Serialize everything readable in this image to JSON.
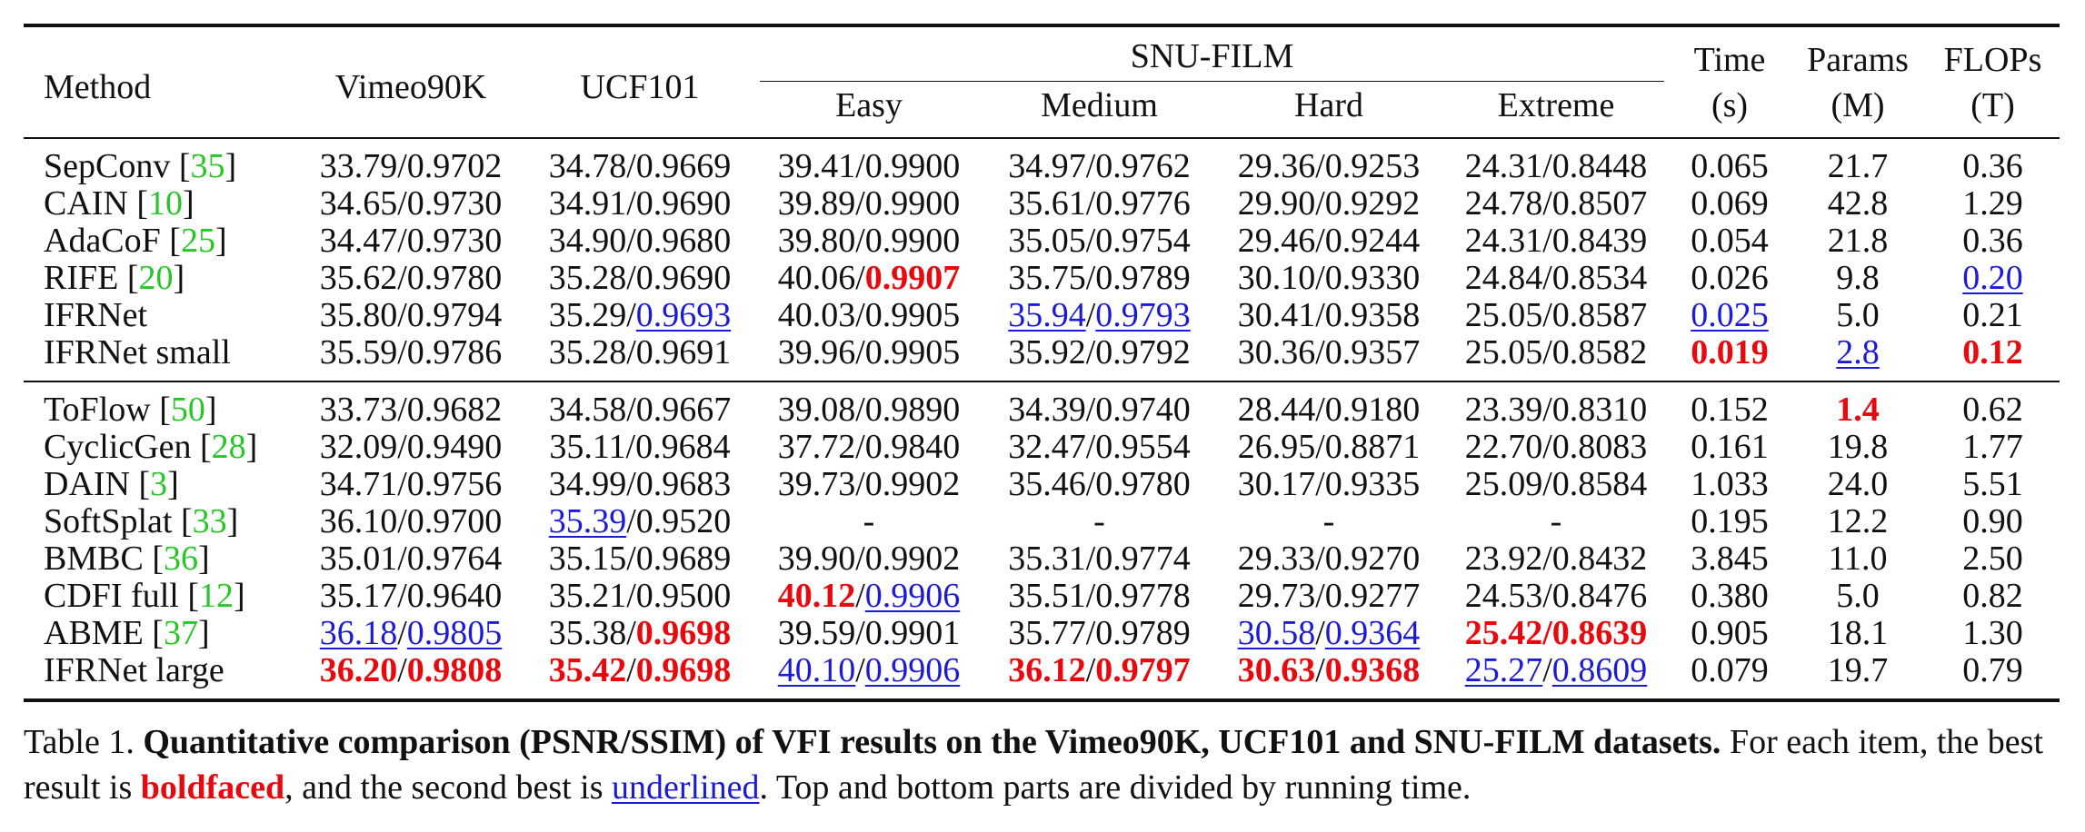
{
  "header": {
    "method": "Method",
    "vimeo": "Vimeo90K",
    "ucf": "UCF101",
    "snu": "SNU-FILM",
    "easy": "Easy",
    "medium": "Medium",
    "hard": "Hard",
    "extreme": "Extreme",
    "time": "Time",
    "time_unit": "(s)",
    "params": "Params",
    "params_unit": "(M)",
    "flops": "FLOPs",
    "flops_unit": "(T)"
  },
  "group1": [
    {
      "method": "SepConv ",
      "ref": "35",
      "cells": [
        "33.79/0.9702",
        "34.78/0.9669",
        "39.41/0.9900",
        "34.97/0.9762",
        "29.36/0.9253",
        "24.31/0.8448",
        "0.065",
        "21.7",
        "0.36"
      ]
    },
    {
      "method": "CAIN ",
      "ref": "10",
      "cells": [
        "34.65/0.9730",
        "34.91/0.9690",
        "39.89/0.9900",
        "35.61/0.9776",
        "29.90/0.9292",
        "24.78/0.8507",
        "0.069",
        "42.8",
        "1.29"
      ]
    },
    {
      "method": "AdaCoF ",
      "ref": "25",
      "cells": [
        "34.47/0.9730",
        "34.90/0.9680",
        "39.80/0.9900",
        "35.05/0.9754",
        "29.46/0.9244",
        "24.31/0.8439",
        "0.054",
        "21.8",
        "0.36"
      ]
    },
    {
      "method": "RIFE ",
      "ref": "20",
      "cells": [
        "35.62/0.9780",
        "35.28/0.9690",
        "40.06/",
        "35.75/0.9789",
        "30.10/0.9330",
        "24.84/0.8534",
        "0.026",
        "9.8",
        ""
      ],
      "rife_best": "0.9907",
      "rife_flops": "0.20"
    },
    {
      "method": "IFRNet",
      "ref": "",
      "cells": [
        "35.80/0.9794",
        "35.29/",
        "40.03/0.9905",
        "",
        "30.41/0.9358",
        "25.05/0.8587",
        "",
        "5.0",
        "0.21"
      ],
      "ucf_second": "0.9693",
      "med_a": "35.94",
      "med_b": "0.9793",
      "time_second": "0.025"
    },
    {
      "method": "IFRNet small",
      "ref": "",
      "cells": [
        "35.59/0.9786",
        "35.28/0.9691",
        "39.96/0.9905",
        "35.92/0.9792",
        "30.36/0.9357",
        "25.05/0.8582",
        "",
        "",
        ""
      ],
      "time_best": "0.019",
      "params_second": "2.8",
      "flops_best": "0.12"
    }
  ],
  "group2": [
    {
      "method": "ToFlow ",
      "ref": "50",
      "cells": [
        "33.73/0.9682",
        "34.58/0.9667",
        "39.08/0.9890",
        "34.39/0.9740",
        "28.44/0.9180",
        "23.39/0.8310",
        "0.152",
        "",
        "0.62"
      ],
      "params_best": "1.4"
    },
    {
      "method": "CyclicGen ",
      "ref": "28",
      "cells": [
        "32.09/0.9490",
        "35.11/0.9684",
        "37.72/0.9840",
        "32.47/0.9554",
        "26.95/0.8871",
        "22.70/0.8083",
        "0.161",
        "19.8",
        "1.77"
      ]
    },
    {
      "method": "DAIN ",
      "ref": "3",
      "cells": [
        "34.71/0.9756",
        "34.99/0.9683",
        "39.73/0.9902",
        "35.46/0.9780",
        "30.17/0.9335",
        "25.09/0.8584",
        "1.033",
        "24.0",
        "5.51"
      ]
    },
    {
      "method": "SoftSplat ",
      "ref": "33",
      "cells": [
        "36.10/0.9700",
        "/0.9520",
        "-",
        "-",
        "-",
        "-",
        "0.195",
        "12.2",
        "0.90"
      ],
      "ucf_second": "35.39"
    },
    {
      "method": "BMBC ",
      "ref": "36",
      "cells": [
        "35.01/0.9764",
        "35.15/0.9689",
        "39.90/0.9902",
        "35.31/0.9774",
        "29.33/0.9270",
        "23.92/0.8432",
        "3.845",
        "11.0",
        "2.50"
      ]
    },
    {
      "method": "CDFI full ",
      "ref": "12",
      "cells": [
        "35.17/0.9640",
        "35.21/0.9500",
        "",
        "35.51/0.9778",
        "29.73/0.9277",
        "24.53/0.8476",
        "0.380",
        "5.0",
        "0.82"
      ],
      "easy_best": "40.12",
      "easy_second": "0.9906"
    },
    {
      "method": "ABME ",
      "ref": "37",
      "cells": [
        "",
        "35.38/",
        "39.59/0.9901",
        "35.77/0.9789",
        "",
        "",
        "0.905",
        "18.1",
        "1.30"
      ],
      "vimeo_a": "36.18",
      "vimeo_b": "0.9805",
      "ucf_best": "0.9698",
      "hard_a": "30.58",
      "hard_b": "0.9364",
      "ext_a": "25.42",
      "ext_b": "0.8639"
    },
    {
      "method": "IFRNet large",
      "ref": "",
      "cells": [
        "",
        "",
        "",
        "",
        "",
        "",
        "0.079",
        "19.7",
        "0.79"
      ],
      "vimeo_a": "36.20",
      "vimeo_b": "0.9808",
      "ucf_a": "35.42",
      "ucf_b": "0.9698",
      "easy_a": "40.10",
      "easy_b": "0.9906",
      "med_a": "36.12",
      "med_b": "0.9797",
      "hard_a": "30.63",
      "hard_b": "0.9368",
      "ext_a": "25.27",
      "ext_b": "0.8609"
    }
  ],
  "caption": {
    "prefix": "Table 1. ",
    "bold": "Quantitative comparison (PSNR/SSIM) of VFI results on the Vimeo90K, UCF101 and SNU-FILM datasets.",
    "after_bold": " For each item, the best result is ",
    "boldfaced": "boldfaced",
    "mid": ", and the second best is ",
    "underlined": "underlined",
    "end": ". Top and bottom parts are divided by running time."
  },
  "colors": {
    "best": "#e8090f",
    "second": "#1b1bd6",
    "ref": "#28c728"
  }
}
